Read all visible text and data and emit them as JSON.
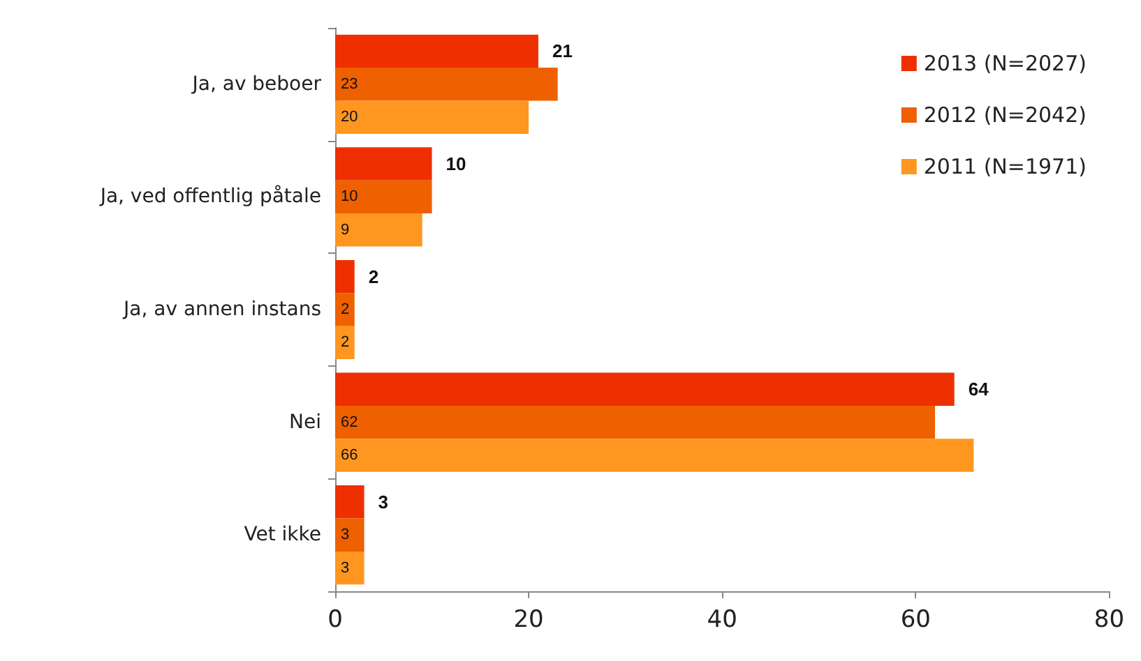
{
  "chart_data": {
    "type": "bar",
    "orientation": "horizontal",
    "categories": [
      "Ja, av beboer",
      "Ja, ved offentlig påtale",
      "Ja, av annen instans",
      "Nei",
      "Vet ikke"
    ],
    "series": [
      {
        "name": "2013 (N=2027)",
        "color": "#ee3000",
        "values": [
          21,
          10,
          2,
          64,
          3
        ]
      },
      {
        "name": "2012 (N=2042)",
        "color": "#ee6000",
        "values": [
          23,
          10,
          2,
          62,
          3
        ]
      },
      {
        "name": "2011 (N=1971)",
        "color": "#ff9620",
        "values": [
          20,
          9,
          2,
          66,
          3
        ]
      }
    ],
    "xlim": [
      0,
      80
    ],
    "xticks": [
      0,
      20,
      40,
      60,
      80
    ],
    "grid": false,
    "legend": "top right",
    "data_labels": true
  }
}
